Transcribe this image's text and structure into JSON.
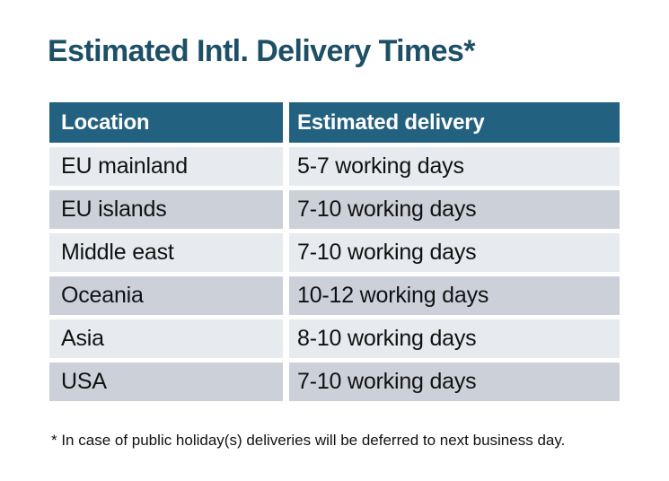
{
  "chart_data": {
    "type": "table",
    "title": "Estimated Intl. Delivery Times*",
    "columns": [
      "Location",
      "Estimated delivery"
    ],
    "rows": [
      [
        "EU mainland",
        "5-7 working days"
      ],
      [
        "EU islands",
        "7-10 working days"
      ],
      [
        "Middle east",
        "7-10 working days"
      ],
      [
        "Oceania",
        "10-12 working days"
      ],
      [
        "Asia",
        "8-10 working days"
      ],
      [
        "USA",
        "7-10 working days"
      ]
    ],
    "footnote": "* In case of public holiday(s) deliveries will be deferred to next business day."
  },
  "colors": {
    "title_text": "#1d4f66",
    "header_bg": "#226180",
    "header_text": "#ffffff",
    "row_dark": "#ccd1d9",
    "row_light": "#e7eaee",
    "body_text": "#111111",
    "background": "#ffffff"
  }
}
